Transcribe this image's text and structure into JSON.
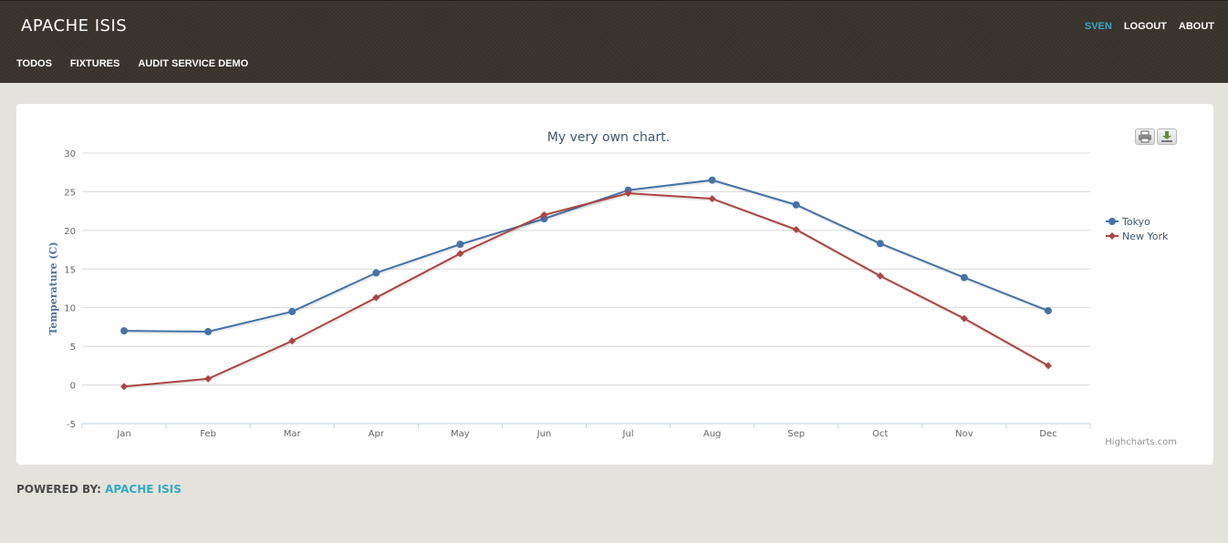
{
  "app": {
    "brand": "APACHE ISIS",
    "nav": [
      "TODOS",
      "FIXTURES",
      "AUDIT SERVICE DEMO"
    ],
    "user_menu": {
      "user": "SVEN",
      "logout": "LOGOUT",
      "about": "ABOUT"
    }
  },
  "toolbar": {
    "print_icon": "printer-icon",
    "export_icon": "download-icon"
  },
  "footer": {
    "label": "POWERED BY:",
    "link": "APACHE ISIS"
  },
  "credits": "Highcharts.com",
  "colors": {
    "tokyo": "#4572a7",
    "newyork": "#aa4643",
    "accent": "#36a9c4"
  },
  "chart_data": {
    "type": "line",
    "title": "My very own chart.",
    "xlabel": "",
    "ylabel": "Temperature (C)",
    "ylim": [
      -5,
      30
    ],
    "yticks": [
      -5,
      0,
      5,
      10,
      15,
      20,
      25,
      30
    ],
    "grid": true,
    "legend": "right",
    "categories": [
      "Jan",
      "Feb",
      "Mar",
      "Apr",
      "May",
      "Jun",
      "Jul",
      "Aug",
      "Sep",
      "Oct",
      "Nov",
      "Dec"
    ],
    "series": [
      {
        "name": "Tokyo",
        "values": [
          7.0,
          6.9,
          9.5,
          14.5,
          18.2,
          21.5,
          25.2,
          26.5,
          23.3,
          18.3,
          13.9,
          9.6
        ]
      },
      {
        "name": "New York",
        "values": [
          -0.2,
          0.8,
          5.7,
          11.3,
          17.0,
          22.0,
          24.8,
          24.1,
          20.1,
          14.1,
          8.6,
          2.5
        ]
      }
    ]
  }
}
